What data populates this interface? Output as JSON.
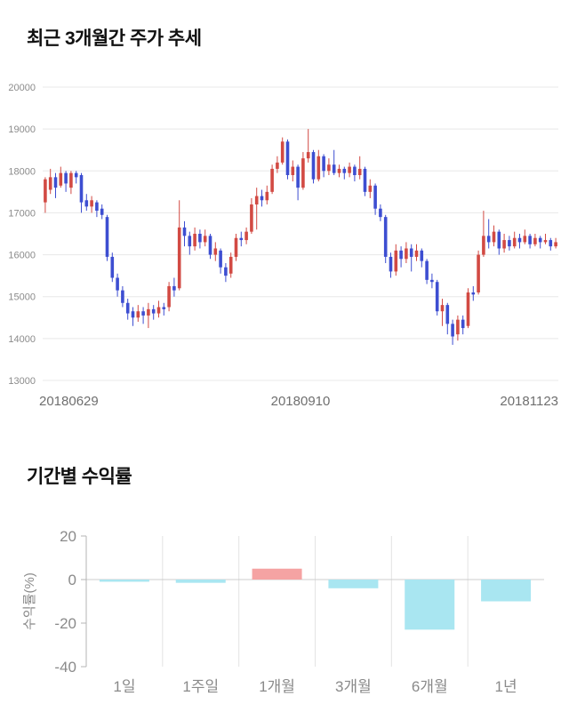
{
  "chart_data": [
    {
      "type": "candlestick",
      "title": "최근 3개월간 주가 추세",
      "x_tick_labels": [
        "20180629",
        "20180910",
        "20181123"
      ],
      "y_ticks": [
        20000,
        19000,
        18000,
        17000,
        16000,
        15000,
        14000,
        13000
      ],
      "ylim": [
        13000,
        20000
      ],
      "grid": "horizontal",
      "legend": "none",
      "up_color": "#d24a43",
      "down_color": "#3d4ed1",
      "grid_color": "#e8e8e8",
      "axis_text_color": "#8b8b8b",
      "x_text_color": "#6f6f6f",
      "candle_format": [
        "open",
        "high",
        "low",
        "close"
      ],
      "candles": [
        [
          17250,
          17850,
          17000,
          17800
        ],
        [
          17550,
          18050,
          17450,
          17850
        ],
        [
          17850,
          17950,
          17350,
          17600
        ],
        [
          17650,
          18100,
          17600,
          17950
        ],
        [
          17950,
          18000,
          17500,
          17700
        ],
        [
          17600,
          18000,
          17450,
          17950
        ],
        [
          17950,
          18000,
          17700,
          17850
        ],
        [
          17900,
          17950,
          17000,
          17250
        ],
        [
          17300,
          17450,
          17050,
          17150
        ],
        [
          17150,
          17400,
          17000,
          17300
        ],
        [
          17250,
          17300,
          16900,
          17050
        ],
        [
          17100,
          17200,
          16850,
          16950
        ],
        [
          16900,
          16950,
          15850,
          15950
        ],
        [
          15950,
          16050,
          15350,
          15450
        ],
        [
          15450,
          15550,
          15000,
          15150
        ],
        [
          15150,
          15250,
          14750,
          14850
        ],
        [
          14850,
          14950,
          14450,
          14600
        ],
        [
          14650,
          14750,
          14300,
          14500
        ],
        [
          14500,
          14800,
          14400,
          14650
        ],
        [
          14650,
          14750,
          14350,
          14550
        ],
        [
          14550,
          14850,
          14250,
          14700
        ],
        [
          14700,
          14800,
          14450,
          14600
        ],
        [
          14600,
          14900,
          14500,
          14750
        ],
        [
          14750,
          14850,
          14550,
          14700
        ],
        [
          14750,
          15350,
          14650,
          15250
        ],
        [
          15250,
          15450,
          15000,
          15150
        ],
        [
          15200,
          17300,
          15150,
          16650
        ],
        [
          16650,
          16800,
          16200,
          16450
        ],
        [
          16450,
          16550,
          16000,
          16200
        ],
        [
          16200,
          16650,
          16100,
          16500
        ],
        [
          16500,
          16600,
          16150,
          16300
        ],
        [
          16300,
          16600,
          16200,
          16450
        ],
        [
          16450,
          16500,
          15900,
          16000
        ],
        [
          16000,
          16300,
          15850,
          16150
        ],
        [
          16100,
          16150,
          15550,
          15700
        ],
        [
          15700,
          15800,
          15350,
          15500
        ],
        [
          15550,
          16050,
          15450,
          15950
        ],
        [
          15950,
          16500,
          15850,
          16400
        ],
        [
          16400,
          16550,
          16200,
          16350
        ],
        [
          16350,
          16650,
          16250,
          16550
        ],
        [
          16550,
          17350,
          16500,
          17200
        ],
        [
          17200,
          17600,
          16600,
          17400
        ],
        [
          17400,
          17550,
          17150,
          17300
        ],
        [
          17300,
          17650,
          17200,
          17500
        ],
        [
          17500,
          18150,
          17450,
          18050
        ],
        [
          18050,
          18350,
          17950,
          18200
        ],
        [
          18200,
          18800,
          18150,
          18700
        ],
        [
          18700,
          18750,
          17800,
          17900
        ],
        [
          17900,
          18250,
          17750,
          18100
        ],
        [
          18100,
          18150,
          17300,
          17600
        ],
        [
          17600,
          18450,
          17550,
          18300
        ],
        [
          18300,
          19000,
          18200,
          18450
        ],
        [
          18450,
          18500,
          17700,
          17800
        ],
        [
          17800,
          18500,
          17750,
          18350
        ],
        [
          18350,
          18400,
          17850,
          18000
        ],
        [
          18000,
          18300,
          17900,
          18150
        ],
        [
          18150,
          18500,
          17900,
          17950
        ],
        [
          17950,
          18150,
          17850,
          18050
        ],
        [
          18050,
          18100,
          17800,
          17950
        ],
        [
          17950,
          18200,
          17850,
          18100
        ],
        [
          18100,
          18150,
          17750,
          17900
        ],
        [
          17900,
          18350,
          17800,
          18050
        ],
        [
          18050,
          18100,
          17400,
          17500
        ],
        [
          17500,
          17800,
          17350,
          17650
        ],
        [
          17650,
          17700,
          16950,
          17100
        ],
        [
          17100,
          17200,
          16800,
          16900
        ],
        [
          16900,
          16950,
          15800,
          15950
        ],
        [
          15950,
          16050,
          15450,
          15600
        ],
        [
          15600,
          16250,
          15500,
          16100
        ],
        [
          16100,
          16200,
          15700,
          15900
        ],
        [
          15900,
          16300,
          15800,
          16150
        ],
        [
          16150,
          16250,
          15600,
          15950
        ],
        [
          15950,
          16250,
          15850,
          16100
        ],
        [
          16100,
          16150,
          15700,
          15850
        ],
        [
          15850,
          15900,
          15300,
          15400
        ],
        [
          15400,
          15550,
          15200,
          15350
        ],
        [
          15350,
          15400,
          14550,
          14650
        ],
        [
          14650,
          14950,
          14300,
          14800
        ],
        [
          14800,
          14850,
          14100,
          14350
        ],
        [
          14350,
          14450,
          13850,
          14050
        ],
        [
          14100,
          14550,
          13950,
          14450
        ],
        [
          14450,
          14550,
          14100,
          14250
        ],
        [
          14300,
          15200,
          14250,
          15100
        ],
        [
          15100,
          15250,
          14900,
          15050
        ],
        [
          15100,
          16100,
          15050,
          16000
        ],
        [
          16000,
          17050,
          15950,
          16450
        ],
        [
          16450,
          16850,
          16150,
          16300
        ],
        [
          16300,
          16700,
          16200,
          16550
        ],
        [
          16550,
          16600,
          16000,
          16150
        ],
        [
          16150,
          16500,
          16050,
          16350
        ],
        [
          16350,
          16450,
          16100,
          16200
        ],
        [
          16200,
          16550,
          16150,
          16400
        ],
        [
          16400,
          16500,
          16150,
          16300
        ],
        [
          16300,
          16600,
          16250,
          16450
        ],
        [
          16450,
          16500,
          16150,
          16250
        ],
        [
          16250,
          16500,
          16200,
          16400
        ],
        [
          16400,
          16450,
          16150,
          16300
        ],
        [
          16300,
          16500,
          16250,
          16350
        ],
        [
          16350,
          16400,
          16100,
          16200
        ],
        [
          16200,
          16400,
          16150,
          16300
        ]
      ]
    },
    {
      "type": "bar",
      "title": "기간별 수익률",
      "ylabel": "수익률(%)",
      "categories": [
        "1일",
        "1주일",
        "1개월",
        "3개월",
        "6개월",
        "1년"
      ],
      "values": [
        -1,
        -1.5,
        5,
        -4,
        -23,
        -10
      ],
      "y_ticks": [
        20,
        0,
        -20,
        -40
      ],
      "ylim": [
        -40,
        20
      ],
      "grid": "vertical-separators",
      "legend": "none",
      "positive_color": "#f5a3a3",
      "negative_color": "#a9e6f1",
      "grid_color": "#e3e3e3",
      "zero_line_color": "#cccccc",
      "axis_color": "#b5b5b5",
      "text_color": "#8a8a8a"
    }
  ]
}
